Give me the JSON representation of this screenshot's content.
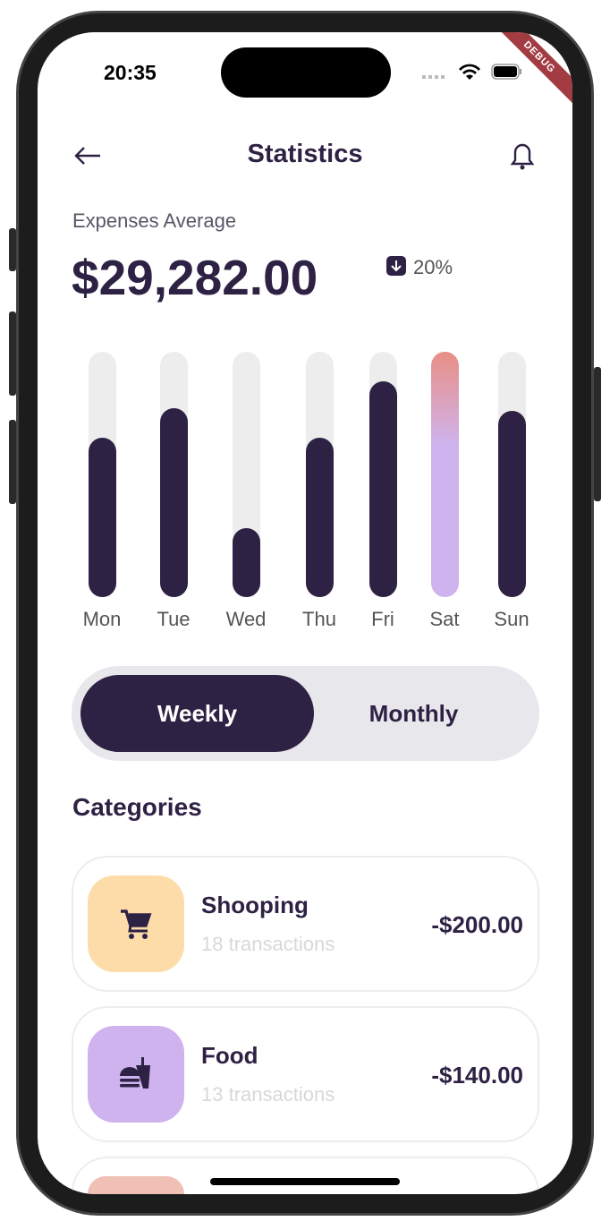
{
  "status_bar": {
    "time": "20:35",
    "debug_banner": "DEBUG"
  },
  "header": {
    "title": "Statistics",
    "back_icon": "arrow-left-icon",
    "bell_icon": "bell-icon"
  },
  "summary": {
    "label": "Expenses Average",
    "amount": "$29,282.00",
    "change": "20%",
    "change_icon": "arrow-down-icon"
  },
  "chart_data": {
    "type": "bar",
    "categories": [
      "Mon",
      "Tue",
      "Wed",
      "Thu",
      "Fri",
      "Sat",
      "Sun"
    ],
    "values": [
      0.65,
      0.77,
      0.28,
      0.65,
      0.88,
      1.0,
      0.76
    ],
    "highlighted": "Sat",
    "colors": {
      "bar": "#2e2244",
      "track": "#ededed",
      "highlight_top": "#e88f85",
      "highlight_bottom": "#cfb3ee"
    }
  },
  "period_toggle": {
    "options": [
      "Weekly",
      "Monthly"
    ],
    "selected": "Weekly"
  },
  "categories": {
    "title": "Categories",
    "items": [
      {
        "name": "Shooping",
        "transactions": "18 transactions",
        "amount": "-$200.00",
        "icon": "cart-icon",
        "color": "#fddcaa"
      },
      {
        "name": "Food",
        "transactions": "13 transactions",
        "amount": "-$140.00",
        "icon": "food-icon",
        "color": "#cfb3ee"
      },
      {
        "color": "#f0c0b5"
      }
    ]
  }
}
